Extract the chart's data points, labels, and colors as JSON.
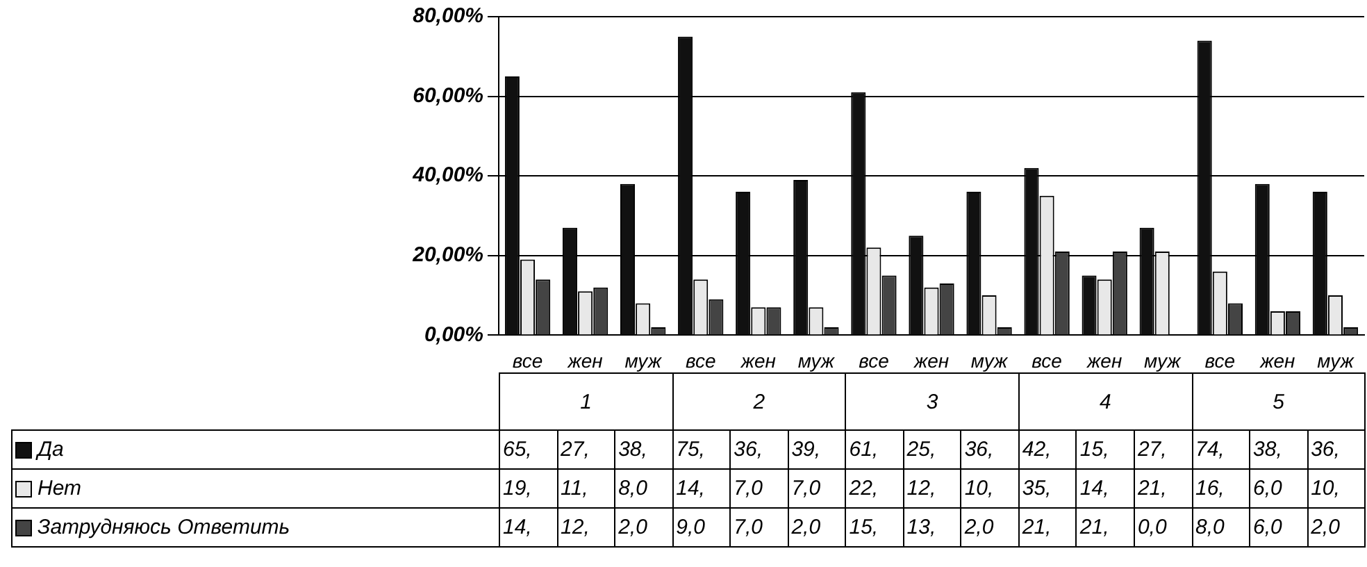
{
  "chart_data": {
    "type": "bar",
    "categories": [
      "все",
      "жен",
      "муж",
      "все",
      "жен",
      "муж",
      "все",
      "жен",
      "муж",
      "все",
      "жен",
      "муж",
      "все",
      "жен",
      "муж"
    ],
    "annotations": [
      "1",
      "2",
      "3",
      "4",
      "5"
    ],
    "series": [
      {
        "name": "Да",
        "color": "#111111",
        "values": [
          65,
          27,
          38,
          75,
          36,
          39,
          61,
          25,
          36,
          42,
          15,
          27,
          74,
          38,
          36
        ],
        "value_labels": [
          "65,",
          "27,",
          "38,",
          "75,",
          "36,",
          "39,",
          "61,",
          "25,",
          "36,",
          "42,",
          "15,",
          "27,",
          "74,",
          "38,",
          "36,"
        ]
      },
      {
        "name": "Нет",
        "color": "#e8e8e8",
        "values": [
          19,
          11,
          8,
          14,
          7,
          7,
          22,
          12,
          10,
          35,
          14,
          21,
          16,
          6,
          10
        ],
        "value_labels": [
          "19,",
          "11,",
          "8,0",
          "14,",
          "7,0",
          "7,0",
          "22,",
          "12,",
          "10,",
          "35,",
          "14,",
          "21,",
          "16,",
          "6,0",
          "10,"
        ]
      },
      {
        "name": "Затрудняюсь Ответить",
        "color": "#444444",
        "values": [
          14,
          12,
          2,
          9,
          7,
          2,
          15,
          13,
          2,
          21,
          21,
          0,
          8,
          6,
          2
        ],
        "value_labels": [
          "14,",
          "12,",
          "2,0",
          "9,0",
          "7,0",
          "2,0",
          "15,",
          "13,",
          "2,0",
          "21,",
          "21,",
          "0,0",
          "8,0",
          "6,0",
          "2,0"
        ]
      }
    ],
    "ylim": [
      0,
      80
    ],
    "yticks": [
      {
        "value": 0,
        "label": "0,00%"
      },
      {
        "value": 20,
        "label": "20,00%"
      },
      {
        "value": 40,
        "label": "40,00%"
      },
      {
        "value": 60,
        "label": "60,00%"
      },
      {
        "value": 80,
        "label": "80,00%"
      }
    ],
    "grid": "y",
    "legend": "bottom"
  }
}
